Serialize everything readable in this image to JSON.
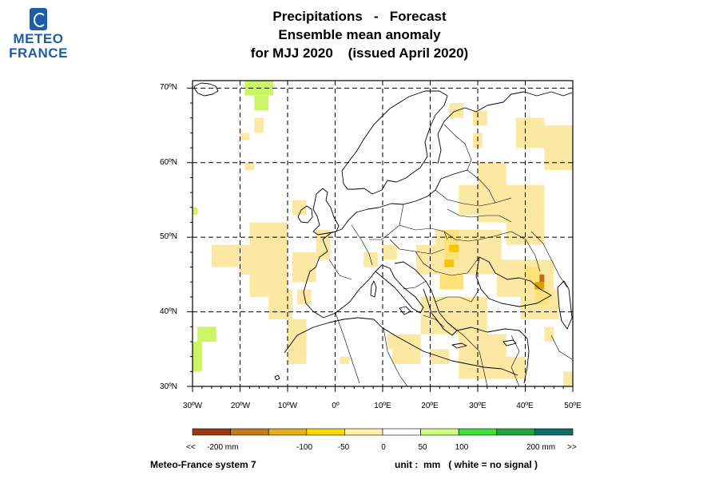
{
  "logo": {
    "line1": "METEO",
    "line2": "FRANCE"
  },
  "titles": {
    "line1": "Precipitations   -   Forecast",
    "line2": "Ensemble mean anomaly",
    "line3": "for MJJ 2020    (issued April 2020)"
  },
  "map": {
    "lat_labels": [
      "70ºN",
      "60ºN",
      "50ºN",
      "40ºN",
      "30ºN"
    ],
    "lon_labels": [
      "30ºW",
      "20ºW",
      "10ºW",
      "0º",
      "10ºE",
      "20ºE",
      "30ºE",
      "40ºE",
      "50ºE"
    ],
    "lat_range": [
      30,
      71
    ],
    "lon_range": [
      -30,
      50
    ],
    "signal_cells": [
      {
        "lon": -19,
        "lat": 69,
        "w": 6,
        "h": 2,
        "color": "#ccf566"
      },
      {
        "lon": -17,
        "lat": 67,
        "w": 3,
        "h": 2,
        "color": "#ccf566"
      },
      {
        "lon": -29,
        "lat": 36,
        "w": 4,
        "h": 2,
        "color": "#ccf566"
      },
      {
        "lon": -30,
        "lat": 32,
        "w": 2,
        "h": 4,
        "color": "#ccf566"
      },
      {
        "lon": -30,
        "lat": 53,
        "w": 1,
        "h": 1,
        "color": "#ccf566"
      },
      {
        "lon": -20,
        "lat": 63,
        "w": 2,
        "h": 1,
        "color": "#fbe9a3"
      },
      {
        "lon": -17,
        "lat": 64,
        "w": 2,
        "h": 2,
        "color": "#fbe9a3"
      },
      {
        "lon": -19,
        "lat": 59,
        "w": 2,
        "h": 1,
        "color": "#fbe9a3"
      },
      {
        "lon": -26,
        "lat": 46,
        "w": 6,
        "h": 3,
        "color": "#fbe9a3"
      },
      {
        "lon": -20,
        "lat": 45,
        "w": 2,
        "h": 4,
        "color": "#fbe9a3"
      },
      {
        "lon": -18,
        "lat": 42,
        "w": 8,
        "h": 10,
        "color": "#fbe9a3"
      },
      {
        "lon": -14,
        "lat": 39,
        "w": 5,
        "h": 4,
        "color": "#fbe9a3"
      },
      {
        "lon": -9,
        "lat": 44,
        "w": 5,
        "h": 4,
        "color": "#fbe9a3"
      },
      {
        "lon": -10,
        "lat": 33,
        "w": 4,
        "h": 6,
        "color": "#fbe9a3"
      },
      {
        "lon": -4,
        "lat": 47,
        "w": 3,
        "h": 4,
        "color": "#fbe9a3"
      },
      {
        "lon": -9,
        "lat": 53,
        "w": 3,
        "h": 2,
        "color": "#fbe9a3"
      },
      {
        "lon": -8,
        "lat": 41,
        "w": 3,
        "h": 2,
        "color": "#fbe9a3"
      },
      {
        "lon": 6,
        "lat": 46,
        "w": 3,
        "h": 2,
        "color": "#fbe9a3"
      },
      {
        "lon": 10,
        "lat": 47,
        "w": 3,
        "h": 2,
        "color": "#fbe9a3"
      },
      {
        "lon": 24,
        "lat": 66,
        "w": 3,
        "h": 2,
        "color": "#fbe9a3"
      },
      {
        "lon": 29,
        "lat": 65,
        "w": 3,
        "h": 2,
        "color": "#fbe9a3"
      },
      {
        "lon": 29,
        "lat": 62,
        "w": 2,
        "h": 2,
        "color": "#fbe9a3"
      },
      {
        "lon": 38,
        "lat": 62,
        "w": 6,
        "h": 4,
        "color": "#fbe9a3"
      },
      {
        "lon": 44,
        "lat": 59,
        "w": 6,
        "h": 6,
        "color": "#fbe9a3"
      },
      {
        "lon": 48,
        "lat": 64,
        "w": 2,
        "h": 1,
        "color": "#fbe9a3"
      },
      {
        "lon": 30,
        "lat": 52,
        "w": 6,
        "h": 8,
        "color": "#fbe9a3"
      },
      {
        "lon": 26,
        "lat": 53,
        "w": 5,
        "h": 4,
        "color": "#fbe9a3"
      },
      {
        "lon": 36,
        "lat": 49,
        "w": 8,
        "h": 8,
        "color": "#fbe9a3"
      },
      {
        "lon": 21,
        "lat": 45,
        "w": 14,
        "h": 6,
        "color": "#fbe9a3"
      },
      {
        "lon": 17,
        "lat": 45,
        "w": 5,
        "h": 4,
        "color": "#fbe9a3"
      },
      {
        "lon": 34,
        "lat": 42,
        "w": 12,
        "h": 5,
        "color": "#fbe9a3"
      },
      {
        "lon": 39,
        "lat": 39,
        "w": 8,
        "h": 4,
        "color": "#fbe9a3"
      },
      {
        "lon": 18,
        "lat": 37,
        "w": 14,
        "h": 5,
        "color": "#fbe9a3"
      },
      {
        "lon": 26,
        "lat": 31,
        "w": 10,
        "h": 6,
        "color": "#fbe9a3"
      },
      {
        "lon": 12,
        "lat": 33,
        "w": 6,
        "h": 4,
        "color": "#fbe9a3"
      },
      {
        "lon": 20,
        "lat": 33,
        "w": 4,
        "h": 2,
        "color": "#fbe9a3"
      },
      {
        "lon": 36,
        "lat": 31,
        "w": 4,
        "h": 3,
        "color": "#fbe9a3"
      },
      {
        "lon": 48,
        "lat": 30,
        "w": 2,
        "h": 2,
        "color": "#fbe9a3"
      },
      {
        "lon": 44,
        "lat": 36,
        "w": 2,
        "h": 2,
        "color": "#fbe9a3"
      },
      {
        "lon": 11,
        "lat": 35,
        "w": 2,
        "h": 2,
        "color": "#fbe9a3"
      },
      {
        "lon": 1,
        "lat": 33,
        "w": 2,
        "h": 1,
        "color": "#fbe9a3"
      },
      {
        "lon": 23,
        "lat": 47,
        "w": 3,
        "h": 4,
        "color": "#fde27a"
      },
      {
        "lon": 22,
        "lat": 43,
        "w": 5,
        "h": 2,
        "color": "#fde27a"
      },
      {
        "lon": 40,
        "lat": 44,
        "w": 3,
        "h": 2,
        "color": "#fde27a"
      },
      {
        "lon": 42,
        "lat": 41,
        "w": 3,
        "h": 2,
        "color": "#fde27a"
      },
      {
        "lon": 23,
        "lat": 46,
        "w": 2,
        "h": 1,
        "color": "#f7c400"
      },
      {
        "lon": 24,
        "lat": 48,
        "w": 2,
        "h": 1,
        "color": "#f7c400"
      },
      {
        "lon": 42,
        "lat": 43,
        "w": 2,
        "h": 1,
        "color": "#d9a200"
      },
      {
        "lon": 43,
        "lat": 44,
        "w": 1,
        "h": 1,
        "color": "#c36b18"
      }
    ]
  },
  "colorbar": {
    "colors": [
      "#9b3a10",
      "#c67b1a",
      "#e4b01e",
      "#fcd700",
      "#fff3aa",
      "#ffffff",
      "#cfff80",
      "#3ee03a",
      "#1fa53a",
      "#0f6e63"
    ],
    "label_left": "<<",
    "label_right": ">>",
    "ticks": [
      "-200 mm",
      "-100",
      "-50",
      "0",
      "50",
      "100",
      "200 mm"
    ]
  },
  "footer": {
    "left": "Meteo-France system 7",
    "right": "unit :  mm   ( white = no signal )"
  }
}
